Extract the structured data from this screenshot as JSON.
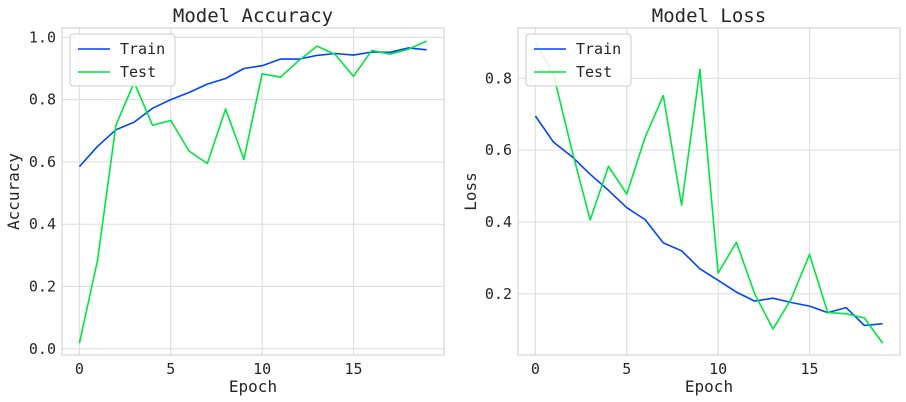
{
  "colors": {
    "train": "#0044ff",
    "test": "#00e640",
    "grid": "#dcdcdc",
    "frame": "#cfcfcf",
    "legend_border": "#cccccc"
  },
  "chart_data": [
    {
      "type": "line",
      "title": "Model Accuracy",
      "xlabel": "Epoch",
      "ylabel": "Accuracy",
      "xlim": [
        -0.95,
        19.95
      ],
      "ylim": [
        -0.02,
        1.03
      ],
      "xticks": [
        0,
        5,
        10,
        15
      ],
      "yticks": [
        0.0,
        0.2,
        0.4,
        0.6,
        0.8,
        1.0
      ],
      "ytick_labels": [
        "0.0",
        "0.2",
        "0.4",
        "0.6",
        "0.8",
        "1.0"
      ],
      "grid": true,
      "legend_position": "top-left",
      "x": [
        0,
        1,
        2,
        3,
        4,
        5,
        6,
        7,
        8,
        9,
        10,
        11,
        12,
        13,
        14,
        15,
        16,
        17,
        18,
        19
      ],
      "series": [
        {
          "name": "Train",
          "values": [
            0.585,
            0.65,
            0.703,
            0.728,
            0.772,
            0.8,
            0.823,
            0.85,
            0.868,
            0.9,
            0.909,
            0.93,
            0.93,
            0.942,
            0.948,
            0.943,
            0.953,
            0.952,
            0.966,
            0.96
          ]
        },
        {
          "name": "Test",
          "values": [
            0.018,
            0.285,
            0.718,
            0.855,
            0.718,
            0.733,
            0.635,
            0.595,
            0.77,
            0.608,
            0.883,
            0.872,
            0.925,
            0.972,
            0.945,
            0.875,
            0.958,
            0.946,
            0.962,
            0.988
          ]
        }
      ]
    },
    {
      "type": "line",
      "title": "Model Loss",
      "xlabel": "Epoch",
      "ylabel": "Loss",
      "xlim": [
        -0.95,
        19.95
      ],
      "ylim": [
        0.03,
        0.94
      ],
      "xticks": [
        0,
        5,
        10,
        15
      ],
      "yticks": [
        0.2,
        0.4,
        0.6,
        0.8
      ],
      "ytick_labels": [
        "0.2",
        "0.4",
        "0.6",
        "0.8"
      ],
      "grid": true,
      "legend_position": "top-left",
      "x": [
        0,
        1,
        2,
        3,
        4,
        5,
        6,
        7,
        8,
        9,
        10,
        11,
        12,
        13,
        14,
        15,
        16,
        17,
        18,
        19
      ],
      "series": [
        {
          "name": "Train",
          "values": [
            0.695,
            0.622,
            0.582,
            0.533,
            0.488,
            0.44,
            0.407,
            0.342,
            0.32,
            0.27,
            0.238,
            0.205,
            0.18,
            0.188,
            0.176,
            0.166,
            0.148,
            0.162,
            0.112,
            0.117
          ]
        },
        {
          "name": "Test",
          "values": [
            0.9,
            0.81,
            0.6,
            0.406,
            0.555,
            0.478,
            0.635,
            0.752,
            0.447,
            0.825,
            0.258,
            0.344,
            0.2,
            0.102,
            0.186,
            0.31,
            0.148,
            0.145,
            0.133,
            0.063
          ]
        }
      ]
    }
  ]
}
